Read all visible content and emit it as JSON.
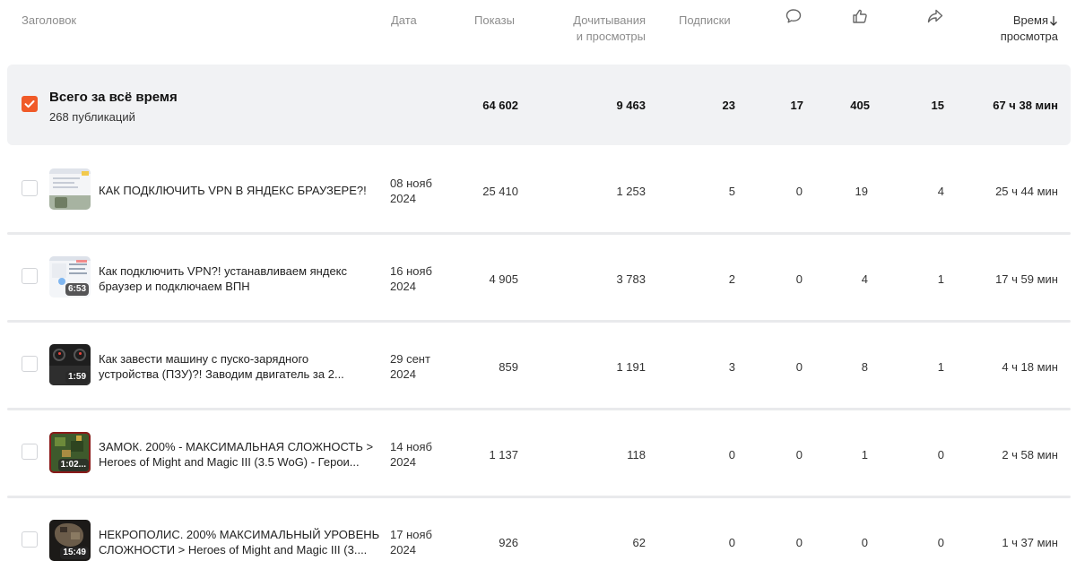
{
  "header": {
    "title": "Заголовок",
    "date": "Дата",
    "impressions": "Показы",
    "reads_line1": "Дочитывания",
    "reads_line2": "и просмотры",
    "subscriptions": "Подписки",
    "comments_icon": "comment-icon",
    "likes_icon": "thumb-up-icon",
    "shares_icon": "share-icon",
    "time_line1": "Время",
    "time_line2": "просмотра",
    "sort_icon": "arrow-down-icon"
  },
  "summary": {
    "title": "Всего за всё время",
    "subtitle": "268 публикаций",
    "checked": true,
    "impressions": "64 602",
    "reads": "9 463",
    "subscriptions": "23",
    "comments": "17",
    "likes": "405",
    "shares": "15",
    "time": "67 ч 38 мин"
  },
  "rows": [
    {
      "title": "КАК ПОДКЛЮЧИТЬ VPN В ЯНДЕКС БРАУЗЕРЕ?!",
      "title2": "",
      "date1": "08 нояб",
      "date2": "2024",
      "duration": "",
      "impressions": "25 410",
      "reads": "1 253",
      "subscriptions": "5",
      "comments": "0",
      "likes": "19",
      "shares": "4",
      "time": "25 ч 44 мин"
    },
    {
      "title": "Как подключить VPN?! устанавливаем яндекс",
      "title2": "браузер и подключаем ВПН",
      "date1": "16 нояб",
      "date2": "2024",
      "duration": "6:53",
      "impressions": "4 905",
      "reads": "3 783",
      "subscriptions": "2",
      "comments": "0",
      "likes": "4",
      "shares": "1",
      "time": "17 ч 59 мин"
    },
    {
      "title": "Как завести машину с пуско-зарядного",
      "title2": "устройства (ПЗУ)?! Заводим двигатель за 2...",
      "date1": "29 сент",
      "date2": "2024",
      "duration": "1:59",
      "impressions": "859",
      "reads": "1 191",
      "subscriptions": "3",
      "comments": "0",
      "likes": "8",
      "shares": "1",
      "time": "4 ч 18 мин"
    },
    {
      "title": "ЗАМОК. 200% - МАКСИМАЛЬНАЯ СЛОЖНОСТЬ >",
      "title2": "Heroes of Might and Magic III (3.5 WoG) - Герои...",
      "date1": "14 нояб",
      "date2": "2024",
      "duration": "1:02...",
      "impressions": "1 137",
      "reads": "118",
      "subscriptions": "0",
      "comments": "0",
      "likes": "1",
      "shares": "0",
      "time": "2 ч 58 мин"
    },
    {
      "title": "НЕКРОПОЛИС. 200% МАКСИМАЛЬНЫЙ УРОВЕНЬ",
      "title2": "СЛОЖНОСТИ > Heroes of Might and Magic III (3....",
      "date1": "17 нояб",
      "date2": "2024",
      "duration": "15:49",
      "impressions": "926",
      "reads": "62",
      "subscriptions": "0",
      "comments": "0",
      "likes": "0",
      "shares": "0",
      "time": "1 ч 37 мин"
    }
  ],
  "colors": {
    "accent": "#f05a28",
    "summary_bg": "#f1f2f4",
    "header_text": "#8c8c8c"
  }
}
